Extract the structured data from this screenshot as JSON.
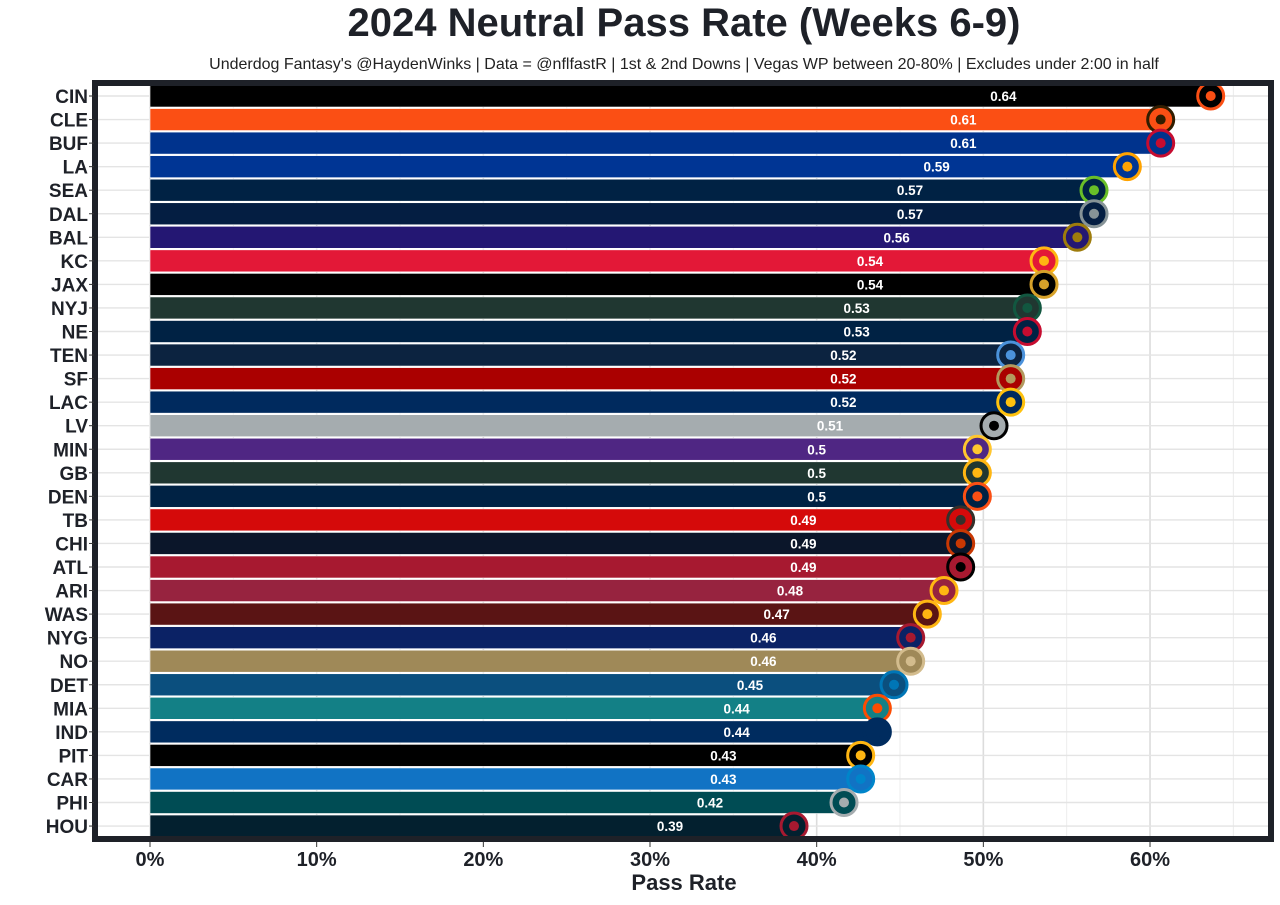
{
  "chart_data": {
    "type": "bar",
    "orientation": "horizontal",
    "title": "2024 Neutral Pass Rate (Weeks 6-9)",
    "subtitle": "Underdog Fantasy's @HaydenWinks | Data = @nflfastR | 1st & 2nd Downs | Vegas WP between 20-80% | Excludes under 2:00 in half",
    "xlabel": "Pass Rate",
    "ylabel": "",
    "xlim": [
      0,
      0.65
    ],
    "xticks": [
      0,
      0.1,
      0.2,
      0.3,
      0.4,
      0.5,
      0.6
    ],
    "xtick_labels": [
      "0%",
      "10%",
      "20%",
      "30%",
      "40%",
      "50%",
      "60%"
    ],
    "grid": true,
    "categories": [
      "CIN",
      "CLE",
      "BUF",
      "LA",
      "SEA",
      "DAL",
      "BAL",
      "KC",
      "JAX",
      "NYJ",
      "NE",
      "TEN",
      "SF",
      "LAC",
      "LV",
      "MIN",
      "GB",
      "DEN",
      "TB",
      "CHI",
      "ATL",
      "ARI",
      "WAS",
      "NYG",
      "NO",
      "DET",
      "MIA",
      "IND",
      "PIT",
      "CAR",
      "PHI",
      "HOU"
    ],
    "values": [
      0.64,
      0.61,
      0.61,
      0.59,
      0.57,
      0.57,
      0.56,
      0.54,
      0.54,
      0.53,
      0.53,
      0.52,
      0.52,
      0.52,
      0.51,
      0.5,
      0.5,
      0.5,
      0.49,
      0.49,
      0.49,
      0.48,
      0.47,
      0.46,
      0.46,
      0.45,
      0.44,
      0.44,
      0.43,
      0.43,
      0.42,
      0.39
    ],
    "data_labels": [
      "0.64",
      "0.61",
      "0.61",
      "0.59",
      "0.57",
      "0.57",
      "0.56",
      "0.54",
      "0.54",
      "0.53",
      "0.53",
      "0.52",
      "0.52",
      "0.52",
      "0.51",
      "0.5",
      "0.5",
      "0.5",
      "0.49",
      "0.49",
      "0.49",
      "0.48",
      "0.47",
      "0.46",
      "0.46",
      "0.45",
      "0.44",
      "0.44",
      "0.43",
      "0.43",
      "0.42",
      "0.39"
    ],
    "bar_colors": [
      "#000000",
      "#FB4F14",
      "#00338D",
      "#003594",
      "#002244",
      "#041E42",
      "#241773",
      "#E31837",
      "#000000",
      "#203731",
      "#002244",
      "#0C2340",
      "#AA0000",
      "#002A5E",
      "#A5ACAF",
      "#4F2683",
      "#203731",
      "#002244",
      "#D50A0A",
      "#0B162A",
      "#A71930",
      "#97233F",
      "#5A1414",
      "#0B2265",
      "#9F8958",
      "#0B4F7E",
      "#138086",
      "#002C5F",
      "#000000",
      "#1173C4",
      "#004C54",
      "#03202F"
    ],
    "logo_colors": [
      "#FB4F14",
      "#311D00",
      "#C60C30",
      "#FFA300",
      "#69BE28",
      "#869397",
      "#9E7C0C",
      "#FFB612",
      "#D7A22A",
      "#125740",
      "#C60C30",
      "#4B92DB",
      "#B3995D",
      "#FFC20E",
      "#000000",
      "#FFC62F",
      "#FFB612",
      "#FB4F14",
      "#34302B",
      "#C83803",
      "#000000",
      "#FFB612",
      "#FFB612",
      "#A71930",
      "#D3BC8D",
      "#0076B6",
      "#FC4C02",
      "#002C5F",
      "#FFB612",
      "#0085CA",
      "#A5ACAF",
      "#A71930"
    ],
    "panel_border_color": "#1e2128"
  }
}
